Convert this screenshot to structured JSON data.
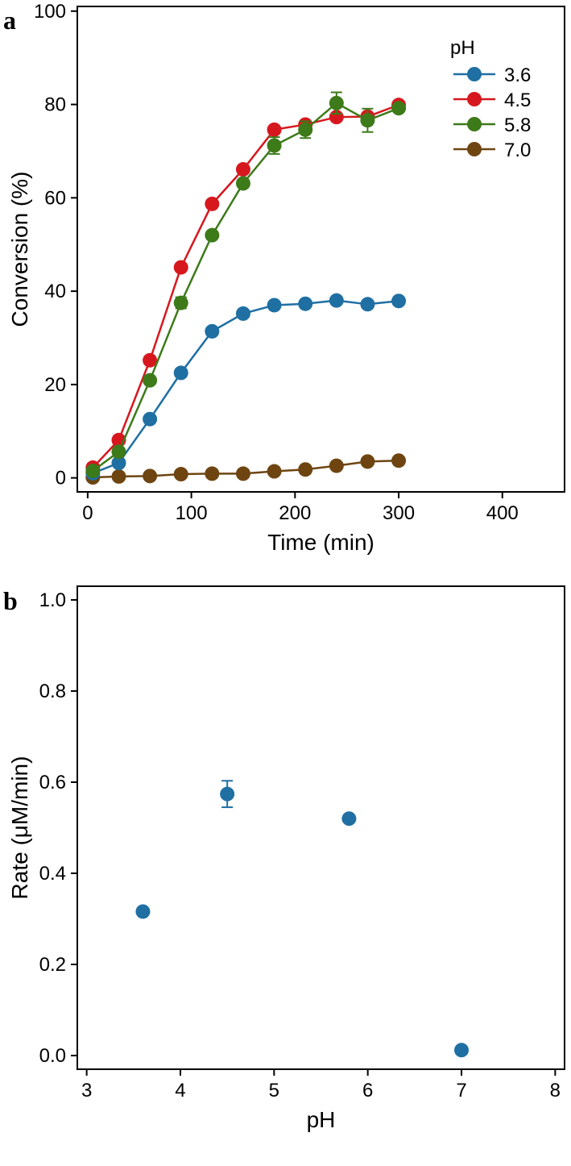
{
  "chart_data": [
    {
      "panel": "a",
      "type": "line",
      "xlabel": "Time (min)",
      "ylabel": "Conversion (%)",
      "xlim": [
        -10,
        460
      ],
      "ylim": [
        -3,
        101
      ],
      "xticks": [
        0,
        100,
        200,
        300,
        400
      ],
      "yticks": [
        0,
        20,
        40,
        60,
        80,
        100
      ],
      "grid": false,
      "legend": {
        "title": "pH",
        "position": "top-right"
      },
      "x": [
        5,
        30,
        60,
        90,
        120,
        150,
        180,
        210,
        240,
        270,
        300
      ],
      "series": [
        {
          "name": "3.6",
          "color": "#1f6fa3",
          "values": [
            1,
            3.2,
            12.6,
            22.5,
            31.4,
            35.2,
            37.0,
            37.3,
            38.0,
            37.2,
            37.9
          ],
          "errors": [
            0,
            0,
            0,
            0,
            0,
            0,
            0,
            0,
            0,
            0,
            0
          ]
        },
        {
          "name": "4.5",
          "color": "#d6181e",
          "values": [
            2.2,
            8.1,
            25.2,
            45.1,
            58.7,
            66.1,
            74.6,
            75.7,
            77.3,
            77.4,
            79.9
          ],
          "errors": [
            0,
            0,
            0,
            0,
            0,
            0,
            0,
            0,
            0,
            0,
            0
          ]
        },
        {
          "name": "5.8",
          "color": "#3d7a1a",
          "values": [
            1.5,
            5.6,
            20.9,
            37.5,
            52.0,
            63.1,
            71.2,
            74.6,
            80.3,
            76.6,
            79.2
          ],
          "errors": [
            0,
            0,
            0,
            1.2,
            0,
            0,
            1.8,
            1.8,
            2.3,
            2.5,
            0
          ]
        },
        {
          "name": "7.0",
          "color": "#6e4511",
          "values": [
            0.1,
            0.3,
            0.4,
            0.8,
            0.9,
            0.9,
            1.4,
            1.8,
            2.6,
            3.5,
            3.7
          ],
          "errors": [
            0,
            0,
            0,
            0,
            0,
            0,
            0,
            0,
            0,
            0,
            0
          ]
        }
      ]
    },
    {
      "panel": "b",
      "type": "scatter",
      "xlabel": "pH",
      "ylabel": "Rate (μM/min)",
      "xlim": [
        2.9,
        8.1
      ],
      "ylim": [
        -0.03,
        1.03
      ],
      "xticks": [
        3,
        4,
        5,
        6,
        7,
        8
      ],
      "yticks": [
        "0.0",
        "0.2",
        "0.4",
        "0.6",
        "0.8",
        "1.0"
      ],
      "grid": false,
      "color": "#1f6fa3",
      "x": [
        3.6,
        4.5,
        5.8,
        7.0
      ],
      "y": [
        0.316,
        0.574,
        0.52,
        0.012
      ],
      "errors": [
        0,
        0.029,
        0.005,
        0
      ]
    }
  ]
}
